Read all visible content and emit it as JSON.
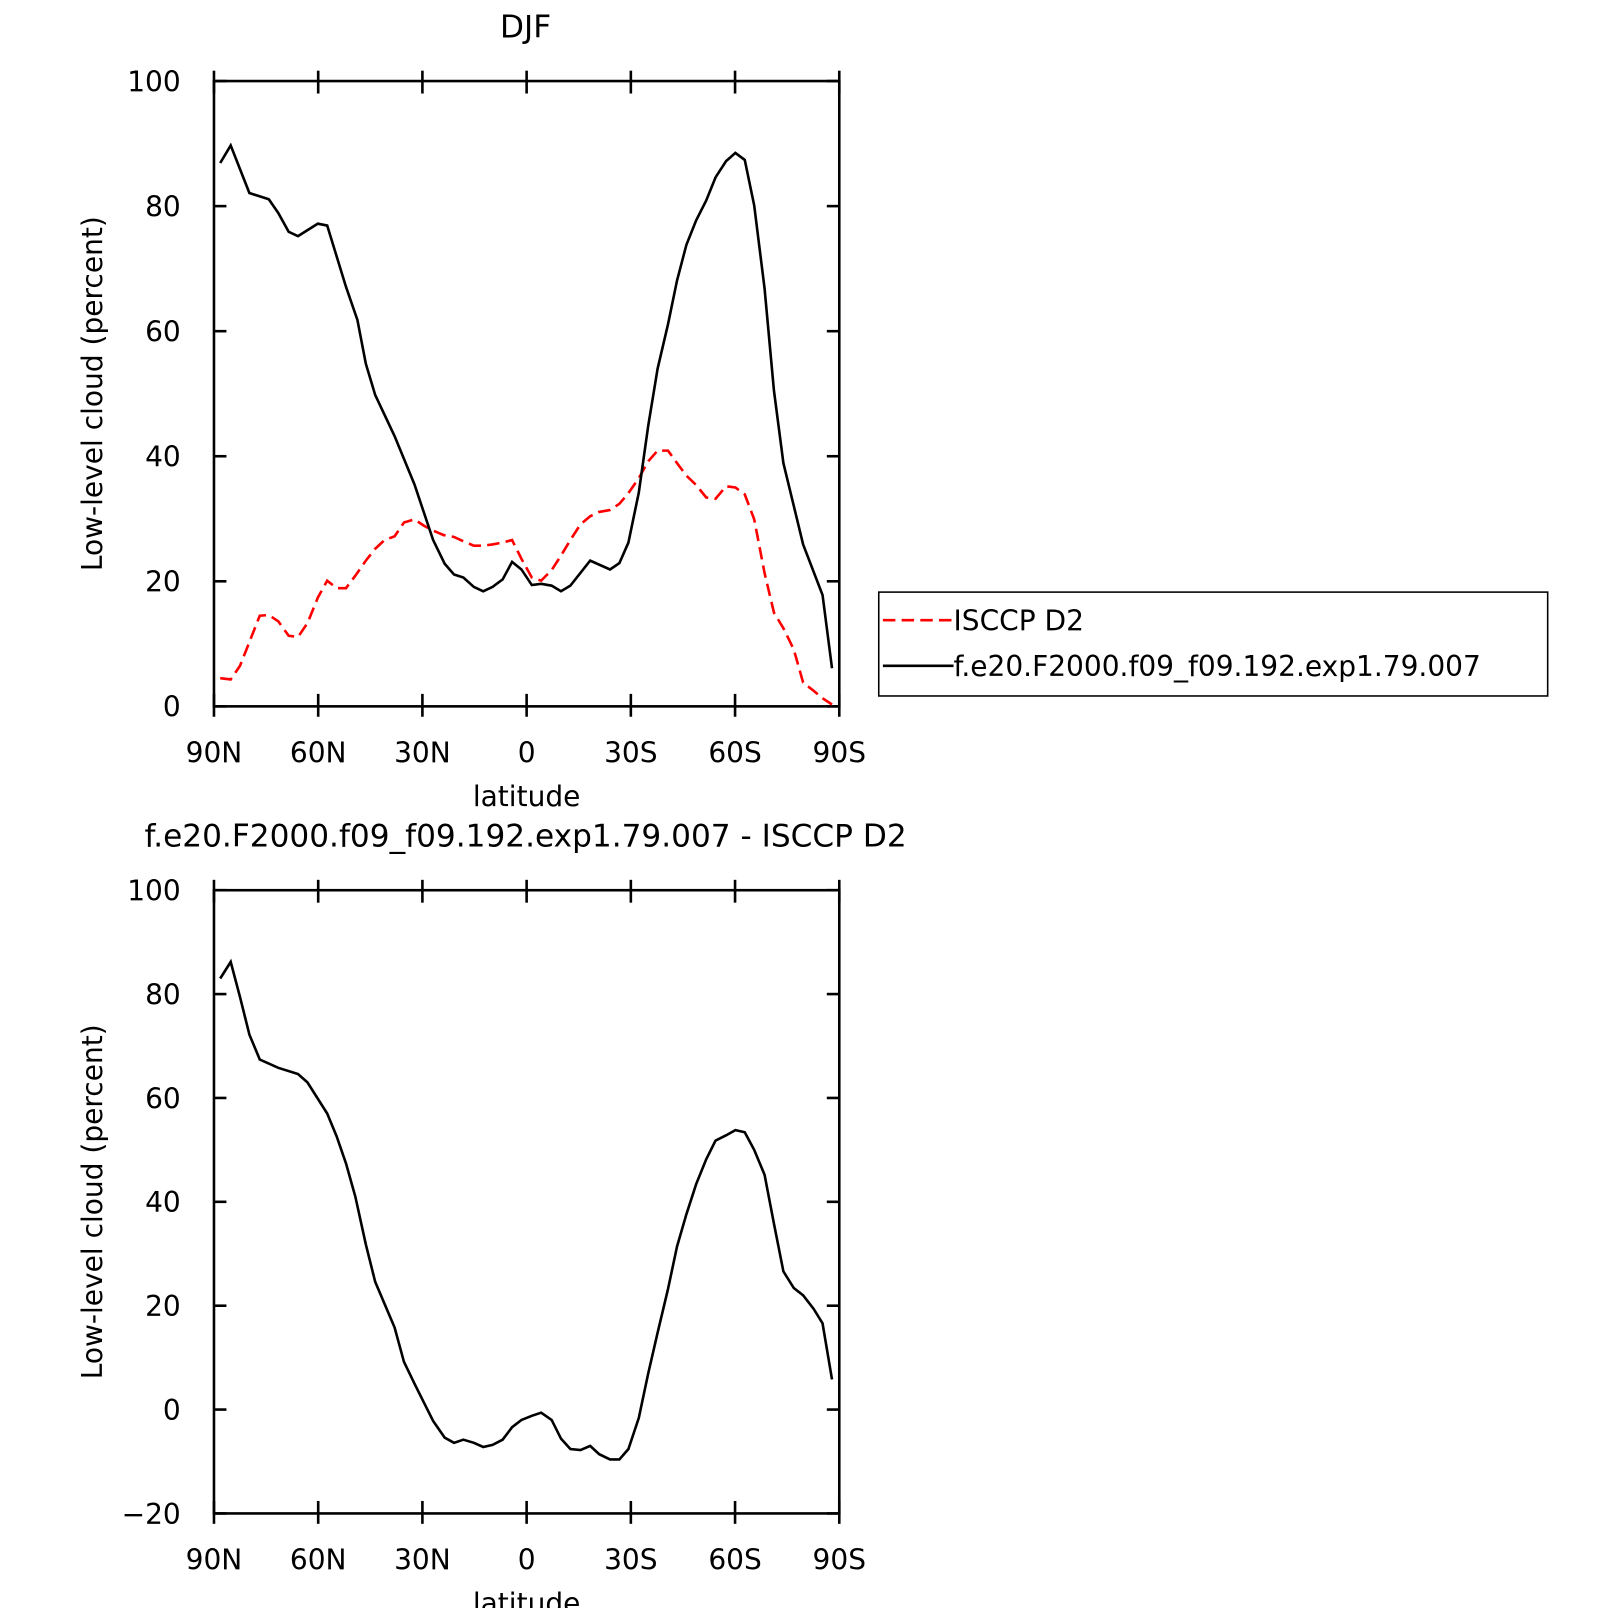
{
  "chart_data": [
    {
      "type": "line",
      "title": "DJF",
      "xlabel": "latitude",
      "ylabel": "Low-level cloud (percent)",
      "xlim": [
        90,
        -90
      ],
      "xticks": [
        {
          "value": 90,
          "label": "90N"
        },
        {
          "value": 60,
          "label": "60N"
        },
        {
          "value": 30,
          "label": "30N"
        },
        0,
        {
          "value": -30,
          "label": "30S"
        },
        {
          "value": -60,
          "label": "60S"
        },
        {
          "value": -90,
          "label": "90S"
        }
      ],
      "ylim": [
        0,
        100
      ],
      "yticks": [
        0,
        20,
        40,
        60,
        80,
        100
      ],
      "legend": "right",
      "series": [
        {
          "name": "ISCCP D2",
          "color": "#ff0000",
          "dash": true,
          "x": [
            88.2,
            85.2,
            82.5,
            76.8,
            74.2,
            71.5,
            68.5,
            65.8,
            63.1,
            60.1,
            57.4,
            54.7,
            52.0,
            49.3,
            46.3,
            43.6,
            40.9,
            38.0,
            35.3,
            32.3,
            29.6,
            26.9,
            23.9,
            20.9,
            18.2,
            15.2,
            12.5,
            9.8,
            6.9,
            4.2,
            1.5,
            -1.5,
            -4.2,
            -7.2,
            -9.9,
            -12.6,
            -15.5,
            -18.3,
            -20.9,
            -24.0,
            -26.7,
            -29.3,
            -32.3,
            -35.0,
            -37.7,
            -40.7,
            -43.3,
            -46.0,
            -48.8,
            -51.7,
            -54.4,
            -57.4,
            -60.1,
            -62.8,
            -65.5,
            -68.5,
            -71.2,
            -73.9,
            -76.9,
            -79.6,
            -82.6,
            -85.2,
            -87.9
          ],
          "values": [
            4.5,
            4.3,
            6.5,
            14.5,
            14.6,
            13.6,
            11.3,
            11.1,
            13.3,
            17.4,
            20.1,
            18.9,
            18.9,
            20.9,
            23.3,
            25.2,
            26.6,
            27.2,
            29.4,
            29.9,
            28.9,
            28.1,
            27.4,
            27.1,
            26.4,
            25.7,
            25.7,
            25.9,
            26.2,
            26.6,
            23.6,
            20.6,
            20.1,
            21.8,
            24.1,
            26.6,
            29.1,
            30.4,
            31.1,
            31.4,
            32.4,
            34.1,
            36.5,
            39.2,
            40.9,
            40.9,
            38.9,
            36.9,
            35.4,
            33.4,
            33.2,
            35.2,
            35.0,
            33.9,
            29.9,
            21.3,
            15.0,
            12.5,
            9.1,
            3.8,
            2.5,
            1.3,
            0.3
          ]
        },
        {
          "name": "f.e20.F2000.f09_f09.192.exp1.79.007",
          "color": "#000000",
          "dash": false,
          "x": [
            88.2,
            85.2,
            79.8,
            74.2,
            71.5,
            68.5,
            65.8,
            60.1,
            57.4,
            52.0,
            48.7,
            46.3,
            43.6,
            38.0,
            32.3,
            26.9,
            23.6,
            20.9,
            18.2,
            15.2,
            12.5,
            9.8,
            6.9,
            4.2,
            1.5,
            -1.5,
            -4.2,
            -7.2,
            -9.9,
            -12.6,
            -18.3,
            -24.0,
            -26.7,
            -29.3,
            -32.3,
            -35.0,
            -37.7,
            -40.7,
            -43.3,
            -46.0,
            -48.8,
            -51.7,
            -54.4,
            -57.4,
            -60.1,
            -62.8,
            -65.5,
            -68.5,
            -71.2,
            -73.9,
            -79.6,
            -85.2,
            -87.9
          ],
          "values": [
            86.9,
            89.7,
            82.1,
            81.1,
            78.9,
            75.9,
            75.2,
            77.2,
            76.9,
            67.1,
            61.8,
            54.8,
            49.8,
            43.2,
            35.5,
            26.6,
            22.8,
            21.1,
            20.6,
            19.1,
            18.4,
            19.1,
            20.3,
            23.1,
            21.9,
            19.4,
            19.6,
            19.3,
            18.4,
            19.3,
            23.3,
            21.9,
            22.9,
            26.2,
            34.2,
            44.9,
            54.0,
            61.1,
            68.1,
            73.8,
            77.7,
            80.9,
            84.6,
            87.2,
            88.5,
            87.4,
            80.1,
            66.8,
            50.5,
            38.9,
            25.9,
            17.8,
            6.1
          ]
        }
      ]
    },
    {
      "type": "line",
      "title": "f.e20.F2000.f09_f09.192.exp1.79.007 - ISCCP D2",
      "xlabel": "latitude",
      "ylabel": "Low-level cloud (percent)",
      "xlim": [
        90,
        -90
      ],
      "xticks": [
        {
          "value": 90,
          "label": "90N"
        },
        {
          "value": 60,
          "label": "60N"
        },
        {
          "value": 30,
          "label": "30N"
        },
        0,
        {
          "value": -30,
          "label": "30S"
        },
        {
          "value": -60,
          "label": "60S"
        },
        {
          "value": -90,
          "label": "90S"
        }
      ],
      "ylim": [
        -20,
        100
      ],
      "yticks": [
        {
          "value": -20,
          "label": "−20"
        },
        0,
        20,
        40,
        60,
        80,
        100
      ],
      "series": [
        {
          "color": "#000000",
          "dash": false,
          "x": [
            88.2,
            85.2,
            82.5,
            79.8,
            76.8,
            71.5,
            65.8,
            63.1,
            57.4,
            54.7,
            52.0,
            49.3,
            46.3,
            43.6,
            38.0,
            35.3,
            32.3,
            29.6,
            26.9,
            23.6,
            20.9,
            18.2,
            15.2,
            12.5,
            9.8,
            6.9,
            4.2,
            1.5,
            -1.5,
            -4.2,
            -7.2,
            -9.9,
            -12.6,
            -15.5,
            -18.3,
            -20.9,
            -24.0,
            -26.7,
            -29.3,
            -32.3,
            -35.0,
            -37.7,
            -40.7,
            -43.3,
            -46.0,
            -48.8,
            -51.7,
            -54.4,
            -57.4,
            -60.1,
            -62.8,
            -65.5,
            -68.5,
            -71.2,
            -73.9,
            -76.9,
            -79.6,
            -82.6,
            -85.2,
            -87.9
          ],
          "values": [
            83,
            86.2,
            79.4,
            72.2,
            67.4,
            65.8,
            64.6,
            63,
            57,
            52.6,
            47.4,
            41,
            31.8,
            24.6,
            15.8,
            9.2,
            5,
            1.4,
            -2.2,
            -5.4,
            -6.4,
            -5.8,
            -6.4,
            -7.2,
            -6.8,
            -5.8,
            -3.4,
            -2,
            -1.2,
            -0.6,
            -2,
            -5.6,
            -7.6,
            -7.8,
            -7,
            -8.6,
            -9.6,
            -9.6,
            -7.6,
            -1.6,
            7,
            14.8,
            23.2,
            31.4,
            37.6,
            43.4,
            48.2,
            51.8,
            52.8,
            53.8,
            53.4,
            50,
            45.2,
            35.8,
            26.6,
            23.4,
            22,
            19.4,
            16.6,
            5.8
          ]
        }
      ]
    }
  ]
}
